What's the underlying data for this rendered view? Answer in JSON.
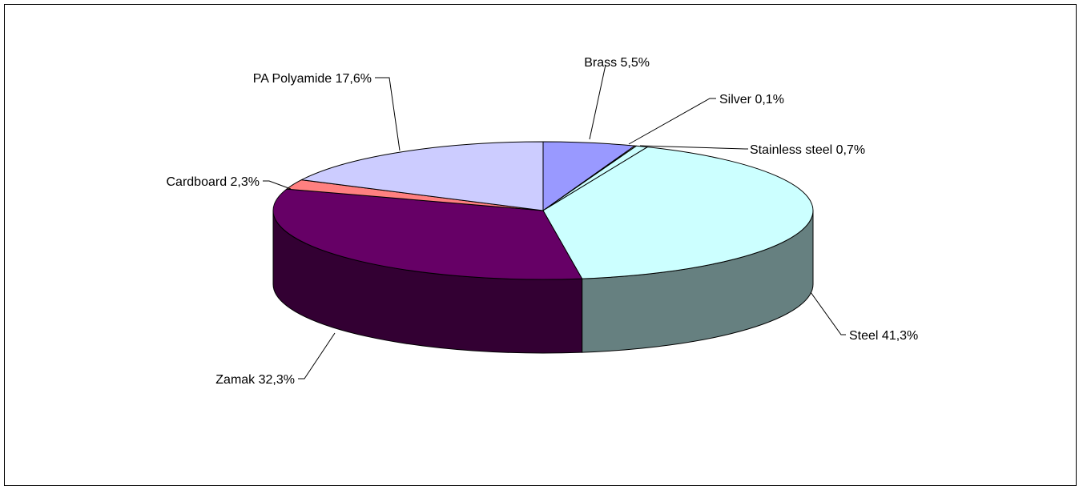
{
  "chart_data": {
    "type": "pie",
    "style": "3d",
    "title": "",
    "categories": [
      "Brass",
      "Silver",
      "Stainless steel",
      "Steel",
      "Zamak",
      "Cardboard",
      "PA Polyamide"
    ],
    "values": [
      5.5,
      0.1,
      0.7,
      41.3,
      32.3,
      2.3,
      17.6
    ],
    "labels": [
      "Brass 5,5%",
      "Silver 0,1%",
      "Stainless steel 0,7%",
      "Steel 41,3%",
      "Zamak 32,3%",
      "Cardboard 2,3%",
      "PA Polyamide 17,6%"
    ],
    "colors": [
      "#9999FF",
      "#FFFFCC",
      "#CCFFFF",
      "#CCFFFF",
      "#660066",
      "#FF8080",
      "#CCCCFF"
    ],
    "side_colors": [
      "#5C5C99",
      "#99997A",
      "#7A9999",
      "#668080",
      "#330033",
      "#994D4D",
      "#7A7A99"
    ],
    "legend": "none",
    "data_labels": "outside-with-leader-lines"
  }
}
